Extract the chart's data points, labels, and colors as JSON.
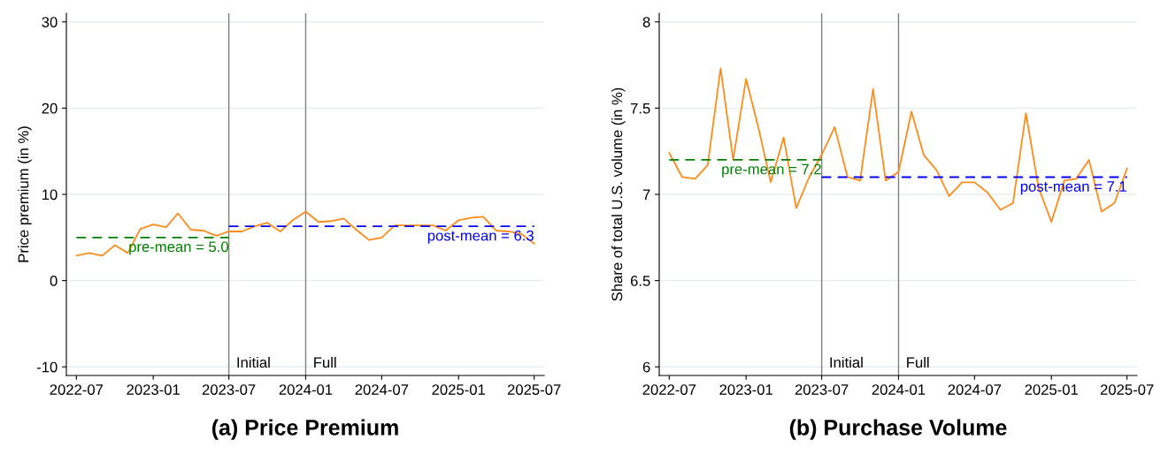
{
  "chart_data": [
    {
      "type": "line",
      "title": "(a) Price Premium",
      "ylabel": "Price premium (in %)",
      "x": [
        "2022-07",
        "2022-08",
        "2022-09",
        "2022-10",
        "2022-11",
        "2022-12",
        "2023-01",
        "2023-02",
        "2023-03",
        "2023-04",
        "2023-05",
        "2023-06",
        "2023-07",
        "2023-08",
        "2023-09",
        "2023-10",
        "2023-11",
        "2023-12",
        "2024-01",
        "2024-02",
        "2024-03",
        "2024-04",
        "2024-05",
        "2024-06",
        "2024-07",
        "2024-08",
        "2024-09",
        "2024-10",
        "2024-11",
        "2024-12",
        "2025-01",
        "2025-02",
        "2025-03",
        "2025-04",
        "2025-05",
        "2025-06",
        "2025-07"
      ],
      "series": [
        {
          "color": "#ff8c1a",
          "values": [
            2.9,
            3.2,
            2.9,
            4.1,
            3.2,
            6.0,
            6.5,
            6.2,
            7.8,
            5.9,
            5.8,
            5.2,
            5.7,
            5.7,
            6.3,
            6.7,
            5.7,
            7.0,
            8.0,
            6.8,
            6.9,
            7.2,
            5.9,
            4.7,
            5.0,
            6.4,
            6.4,
            6.4,
            6.4,
            5.8,
            7.0,
            7.3,
            7.4,
            5.8,
            5.7,
            5.4,
            4.3
          ]
        },
        {
          "type": "line",
          "name": "pre-mean = 5.0",
          "color": "#008000",
          "line_style": "dashed",
          "x": [
            "2022-07",
            "2023-07"
          ],
          "values": [
            5.0,
            5.0
          ]
        },
        {
          "type": "line",
          "name": "post-mean = 6.3",
          "color": "#0000ff",
          "line_style": "dashed",
          "x": [
            "2023-07",
            "2025-07"
          ],
          "values": [
            6.3,
            6.3
          ]
        }
      ],
      "xlim": [
        "2022-06-07",
        "2025-07-25"
      ],
      "xticks": [
        {
          "value": "2022-07",
          "label": "2022-07"
        },
        {
          "value": "2023-01",
          "label": "2023-01"
        },
        {
          "value": "2023-07",
          "label": "2023-07"
        },
        {
          "value": "2024-01",
          "label": "2024-01"
        },
        {
          "value": "2024-07",
          "label": "2024-07"
        },
        {
          "value": "2025-01",
          "label": "2025-01"
        },
        {
          "value": "2025-07",
          "label": "2025-07"
        }
      ],
      "ylim": [
        -11,
        31
      ],
      "yticks": [
        -10,
        0,
        10,
        20,
        30
      ],
      "ref_lines": [
        {
          "axis": "x",
          "value": "2023-07",
          "label": "Initial",
          "color": "#808080"
        },
        {
          "axis": "x",
          "value": "2024-01",
          "label": "Full",
          "color": "#808080"
        }
      ],
      "grid": "y",
      "legend": false,
      "line_style": "solid",
      "marker": "none"
    },
    {
      "type": "line",
      "title": "(b) Purchase Volume",
      "ylabel": "Share of total U.S. volume (in %)",
      "x": [
        "2022-07",
        "2022-08",
        "2022-09",
        "2022-10",
        "2022-11",
        "2022-12",
        "2023-01",
        "2023-02",
        "2023-03",
        "2023-04",
        "2023-05",
        "2023-06",
        "2023-07",
        "2023-08",
        "2023-09",
        "2023-10",
        "2023-11",
        "2023-12",
        "2024-01",
        "2024-02",
        "2024-03",
        "2024-04",
        "2024-05",
        "2024-06",
        "2024-07",
        "2024-08",
        "2024-09",
        "2024-10",
        "2024-11",
        "2024-12",
        "2025-01",
        "2025-02",
        "2025-03",
        "2025-04",
        "2025-05",
        "2025-06",
        "2025-07"
      ],
      "series": [
        {
          "color": "#ff8c1a",
          "values": [
            7.24,
            7.1,
            7.09,
            7.17,
            7.73,
            7.2,
            7.67,
            7.37,
            7.07,
            7.33,
            6.92,
            7.1,
            7.23,
            7.39,
            7.1,
            7.08,
            7.61,
            7.08,
            7.13,
            7.48,
            7.23,
            7.14,
            6.99,
            7.07,
            7.07,
            7.01,
            6.91,
            6.95,
            7.47,
            7.04,
            6.84,
            7.08,
            7.09,
            7.2,
            6.9,
            6.95,
            7.15
          ]
        },
        {
          "type": "line",
          "name": "pre-mean = 7.2",
          "color": "#008000",
          "line_style": "dashed",
          "x": [
            "2022-07",
            "2023-07"
          ],
          "values": [
            7.2,
            7.2
          ]
        },
        {
          "type": "line",
          "name": "post-mean = 7.1",
          "color": "#0000ff",
          "line_style": "dashed",
          "x": [
            "2023-07",
            "2025-07"
          ],
          "values": [
            7.1,
            7.1
          ]
        }
      ],
      "xlim": [
        "2022-06-07",
        "2025-07-25"
      ],
      "xticks": [
        {
          "value": "2022-07",
          "label": "2022-07"
        },
        {
          "value": "2023-01",
          "label": "2023-01"
        },
        {
          "value": "2023-07",
          "label": "2023-07"
        },
        {
          "value": "2024-01",
          "label": "2024-01"
        },
        {
          "value": "2024-07",
          "label": "2024-07"
        },
        {
          "value": "2025-01",
          "label": "2025-01"
        },
        {
          "value": "2025-07",
          "label": "2025-07"
        }
      ],
      "ylim": [
        5.95,
        8.05
      ],
      "yticks": [
        6,
        6.5,
        7,
        7.5,
        8
      ],
      "ref_lines": [
        {
          "axis": "x",
          "value": "2023-07",
          "label": "Initial",
          "color": "#808080"
        },
        {
          "axis": "x",
          "value": "2024-01",
          "label": "Full",
          "color": "#808080"
        }
      ],
      "grid": "y",
      "legend": false,
      "line_style": "solid",
      "marker": "none"
    }
  ]
}
